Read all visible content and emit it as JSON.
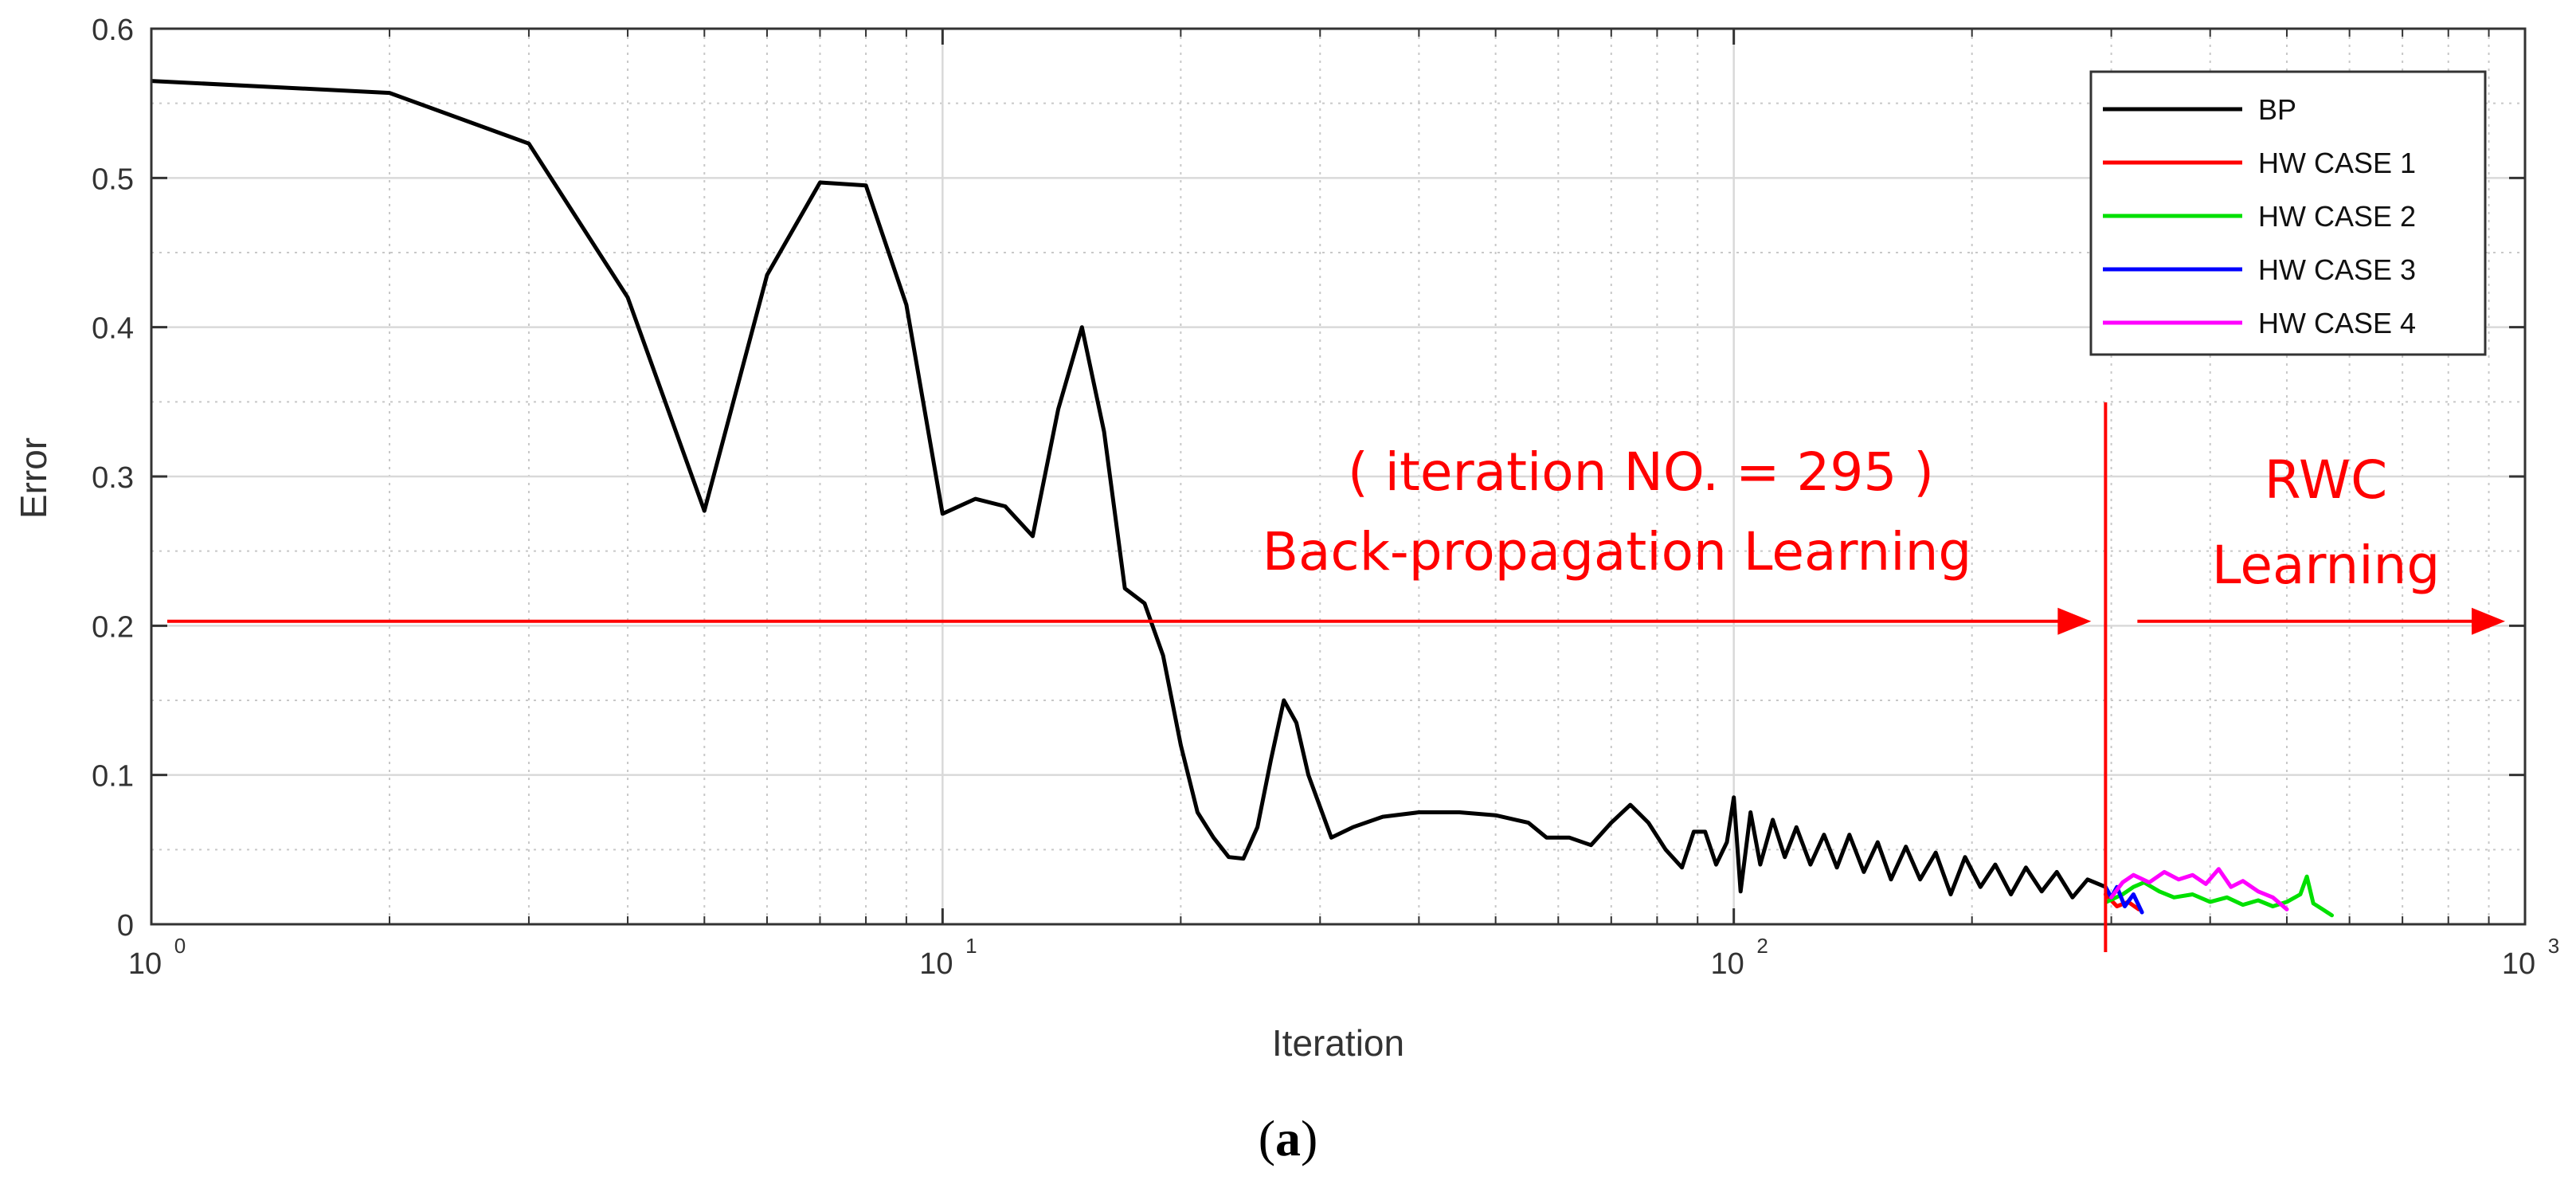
{
  "chart_data": {
    "type": "line",
    "xlabel": "Iteration",
    "ylabel": "Error",
    "caption_open": "(",
    "caption_letter": "a",
    "caption_close": ")",
    "x_scale": "log",
    "xlim": [
      1,
      1000
    ],
    "ylim": [
      0,
      0.6
    ],
    "grid": true,
    "legend_position": "top-right",
    "x_ticks": [
      {
        "base": "10",
        "exp": "0",
        "value": 1
      },
      {
        "base": "10",
        "exp": "1",
        "value": 10
      },
      {
        "base": "10",
        "exp": "2",
        "value": 100
      },
      {
        "base": "10",
        "exp": "3",
        "value": 1000
      }
    ],
    "y_ticks": [
      {
        "label": "0",
        "value": 0
      },
      {
        "label": "0.1",
        "value": 0.1
      },
      {
        "label": "0.2",
        "value": 0.2
      },
      {
        "label": "0.3",
        "value": 0.3
      },
      {
        "label": "0.4",
        "value": 0.4
      },
      {
        "label": "0.5",
        "value": 0.5
      },
      {
        "label": "0.6",
        "value": 0.6
      }
    ],
    "series": [
      {
        "name": "BP",
        "color": "#000000",
        "points": [
          [
            1,
            0.565
          ],
          [
            2,
            0.557
          ],
          [
            3,
            0.523
          ],
          [
            4,
            0.42
          ],
          [
            5,
            0.277
          ],
          [
            6,
            0.435
          ],
          [
            7,
            0.497
          ],
          [
            8,
            0.495
          ],
          [
            9,
            0.415
          ],
          [
            10,
            0.275
          ],
          [
            11,
            0.285
          ],
          [
            12,
            0.28
          ],
          [
            13,
            0.26
          ],
          [
            14,
            0.345
          ],
          [
            15,
            0.4
          ],
          [
            16,
            0.33
          ],
          [
            17,
            0.225
          ],
          [
            18,
            0.215
          ],
          [
            19,
            0.18
          ],
          [
            20,
            0.12
          ],
          [
            21,
            0.075
          ],
          [
            22,
            0.058
          ],
          [
            23,
            0.045
          ],
          [
            24,
            0.044
          ],
          [
            25,
            0.065
          ],
          [
            26,
            0.11
          ],
          [
            27,
            0.15
          ],
          [
            28,
            0.135
          ],
          [
            29,
            0.1
          ],
          [
            31,
            0.058
          ],
          [
            33,
            0.065
          ],
          [
            36,
            0.072
          ],
          [
            40,
            0.075
          ],
          [
            45,
            0.075
          ],
          [
            50,
            0.073
          ],
          [
            55,
            0.068
          ],
          [
            58,
            0.058
          ],
          [
            62,
            0.058
          ],
          [
            66,
            0.053
          ],
          [
            70,
            0.068
          ],
          [
            74,
            0.08
          ],
          [
            78,
            0.068
          ],
          [
            82,
            0.05
          ],
          [
            86,
            0.038
          ],
          [
            89,
            0.062
          ],
          [
            92,
            0.062
          ],
          [
            95,
            0.04
          ],
          [
            98,
            0.055
          ],
          [
            100,
            0.085
          ],
          [
            102,
            0.022
          ],
          [
            105,
            0.075
          ],
          [
            108,
            0.04
          ],
          [
            112,
            0.07
          ],
          [
            116,
            0.045
          ],
          [
            120,
            0.065
          ],
          [
            125,
            0.04
          ],
          [
            130,
            0.06
          ],
          [
            135,
            0.038
          ],
          [
            140,
            0.06
          ],
          [
            146,
            0.035
          ],
          [
            152,
            0.055
          ],
          [
            158,
            0.03
          ],
          [
            165,
            0.052
          ],
          [
            172,
            0.03
          ],
          [
            180,
            0.048
          ],
          [
            188,
            0.02
          ],
          [
            196,
            0.045
          ],
          [
            205,
            0.025
          ],
          [
            214,
            0.04
          ],
          [
            224,
            0.02
          ],
          [
            234,
            0.038
          ],
          [
            245,
            0.022
          ],
          [
            256,
            0.035
          ],
          [
            268,
            0.018
          ],
          [
            280,
            0.03
          ],
          [
            295,
            0.025
          ]
        ]
      },
      {
        "name": "HW CASE 1",
        "color": "#ff0000",
        "points": [
          [
            295,
            0.02
          ],
          [
            305,
            0.012
          ],
          [
            315,
            0.015
          ],
          [
            325,
            0.01
          ]
        ]
      },
      {
        "name": "HW CASE 2",
        "color": "#00e000",
        "points": [
          [
            296,
            0.015
          ],
          [
            310,
            0.02
          ],
          [
            320,
            0.025
          ],
          [
            330,
            0.028
          ],
          [
            345,
            0.022
          ],
          [
            360,
            0.018
          ],
          [
            380,
            0.02
          ],
          [
            400,
            0.015
          ],
          [
            420,
            0.018
          ],
          [
            440,
            0.013
          ],
          [
            460,
            0.016
          ],
          [
            480,
            0.012
          ],
          [
            500,
            0.015
          ],
          [
            520,
            0.02
          ],
          [
            530,
            0.032
          ],
          [
            540,
            0.014
          ],
          [
            555,
            0.01
          ],
          [
            570,
            0.006
          ]
        ]
      },
      {
        "name": "HW CASE 3",
        "color": "#0000ff",
        "points": [
          [
            295,
            0.025
          ],
          [
            300,
            0.018
          ],
          [
            305,
            0.025
          ],
          [
            312,
            0.012
          ],
          [
            320,
            0.02
          ],
          [
            328,
            0.008
          ]
        ]
      },
      {
        "name": "HW CASE 4",
        "color": "#ff00ff",
        "points": [
          [
            300,
            0.018
          ],
          [
            310,
            0.028
          ],
          [
            320,
            0.033
          ],
          [
            335,
            0.028
          ],
          [
            350,
            0.035
          ],
          [
            365,
            0.03
          ],
          [
            380,
            0.033
          ],
          [
            395,
            0.027
          ],
          [
            410,
            0.037
          ],
          [
            425,
            0.025
          ],
          [
            440,
            0.029
          ],
          [
            460,
            0.022
          ],
          [
            480,
            0.018
          ],
          [
            500,
            0.01
          ]
        ]
      }
    ],
    "divider_x": 295,
    "annotations": {
      "iteration_note": "( iteration NO. = 295 )",
      "bp_phase": "Back-propagation Learning",
      "rwc_line1": "RWC",
      "rwc_line2": "Learning",
      "arrow_y": 0.203,
      "color": "#ff0000"
    }
  }
}
